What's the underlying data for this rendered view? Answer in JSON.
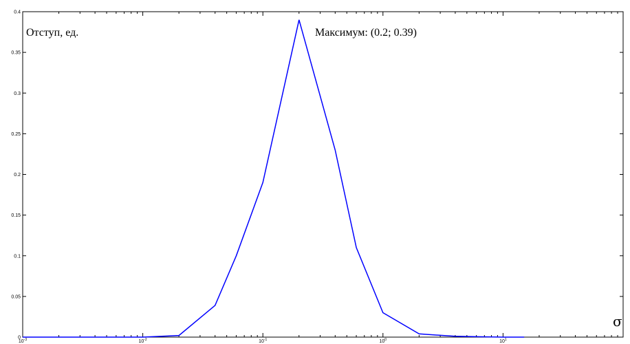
{
  "chart_data": {
    "type": "line",
    "x_scale": "log",
    "xlim": [
      0.001,
      100
    ],
    "ylim": [
      0,
      0.4
    ],
    "grid": false,
    "ylabel": "Отступ, ед.",
    "xlabel": "σ",
    "annotation": "Максимум: (0.2; 0.39)",
    "line_color": "#0000ff",
    "y_ticks": [
      "0",
      "0.05",
      "0.1",
      "0.15",
      "0.2",
      "0.25",
      "0.3",
      "0.35",
      "0.4"
    ],
    "y_tick_values": [
      0,
      0.05,
      0.1,
      0.15,
      0.2,
      0.25,
      0.3,
      0.35,
      0.4
    ],
    "x_ticks": [
      "10",
      "10",
      "10",
      "10",
      "10"
    ],
    "x_tick_exponents": [
      "-3",
      "-2",
      "-1",
      "0",
      "1"
    ],
    "x_tick_values": [
      0.001,
      0.01,
      0.1,
      1,
      10
    ],
    "series": [
      {
        "x": [
          0.001,
          0.002,
          0.004,
          0.006,
          0.008,
          0.01,
          0.02,
          0.04,
          0.06,
          0.1,
          0.2,
          0.4,
          0.6,
          1,
          2,
          4,
          6,
          10,
          15
        ],
        "y": [
          0,
          0,
          0,
          0,
          0,
          0,
          0.002,
          0.039,
          0.1,
          0.19,
          0.39,
          0.23,
          0.11,
          0.03,
          0.004,
          0.001,
          0.0005,
          0,
          0
        ]
      }
    ]
  }
}
